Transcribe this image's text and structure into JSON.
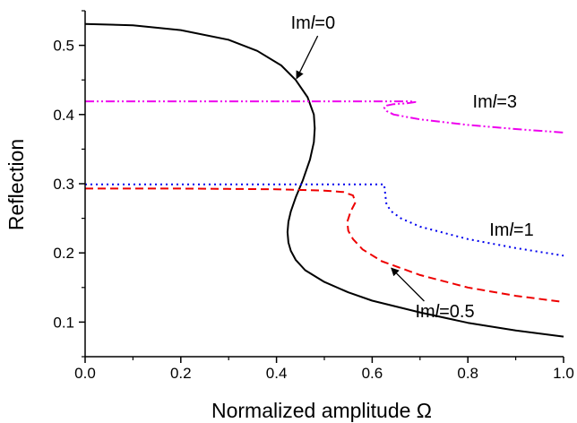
{
  "chart_data": {
    "type": "line",
    "title": "",
    "xlabel": "Normalized amplitude Ω",
    "ylabel": "Reflection",
    "xlim": [
      0,
      1
    ],
    "ylim": [
      0.05,
      0.55
    ],
    "xticks": [
      "0.0",
      "0.2",
      "0.4",
      "0.6",
      "0.8",
      "1.0"
    ],
    "xtick_values": [
      0,
      0.2,
      0.4,
      0.6,
      0.8,
      1.0
    ],
    "yticks": [
      "0.1",
      "0.2",
      "0.3",
      "0.4",
      "0.5"
    ],
    "ytick_values": [
      0.1,
      0.2,
      0.3,
      0.4,
      0.5
    ],
    "grid": false,
    "series": [
      {
        "color": "#000000",
        "dash": "solid",
        "x": [
          0.0,
          0.1,
          0.2,
          0.3,
          0.36,
          0.41,
          0.44,
          0.465,
          0.478,
          0.48,
          0.478,
          0.47,
          0.455,
          0.44,
          0.43,
          0.425,
          0.423,
          0.425,
          0.43,
          0.44,
          0.46,
          0.5,
          0.55,
          0.6,
          0.7,
          0.8,
          0.9,
          1.0
        ],
        "y": [
          0.531,
          0.529,
          0.522,
          0.508,
          0.492,
          0.471,
          0.45,
          0.425,
          0.4,
          0.38,
          0.36,
          0.335,
          0.305,
          0.28,
          0.26,
          0.245,
          0.23,
          0.215,
          0.203,
          0.19,
          0.175,
          0.158,
          0.143,
          0.131,
          0.114,
          0.099,
          0.088,
          0.079
        ]
      },
      {
        "color": "#ee00ee",
        "dash": "dash-dot-dot",
        "x": [
          0.0,
          0.2,
          0.4,
          0.55,
          0.62,
          0.65,
          0.68,
          0.69,
          0.67,
          0.645,
          0.63,
          0.625,
          0.63,
          0.645,
          0.7,
          0.8,
          0.9,
          1.0
        ],
        "y": [
          0.419,
          0.419,
          0.419,
          0.419,
          0.419,
          0.419,
          0.419,
          0.418,
          0.416,
          0.415,
          0.413,
          0.41,
          0.405,
          0.4,
          0.393,
          0.385,
          0.379,
          0.374
        ]
      },
      {
        "color": "#0000ee",
        "dash": "dotted",
        "x": [
          0.0,
          0.2,
          0.4,
          0.55,
          0.6,
          0.625,
          0.628,
          0.63,
          0.64,
          0.66,
          0.7,
          0.8,
          0.9,
          1.0
        ],
        "y": [
          0.299,
          0.299,
          0.299,
          0.299,
          0.299,
          0.299,
          0.28,
          0.27,
          0.26,
          0.25,
          0.238,
          0.22,
          0.207,
          0.196
        ]
      },
      {
        "color": "#ee0000",
        "dash": "dashed",
        "x": [
          0.0,
          0.2,
          0.4,
          0.5,
          0.54,
          0.56,
          0.565,
          0.555,
          0.548,
          0.55,
          0.56,
          0.58,
          0.62,
          0.7,
          0.8,
          0.9,
          1.0
        ],
        "y": [
          0.293,
          0.293,
          0.292,
          0.29,
          0.288,
          0.283,
          0.273,
          0.26,
          0.245,
          0.232,
          0.22,
          0.205,
          0.188,
          0.168,
          0.15,
          0.138,
          0.129
        ]
      }
    ],
    "annotations": [
      {
        "prefix": "Im",
        "italic": "l",
        "suffix": "=0",
        "x": 0.43,
        "y": 0.524,
        "arrow_to": [
          0.442,
          0.452
        ]
      },
      {
        "prefix": "Im",
        "italic": "l",
        "suffix": "=3",
        "x": 0.81,
        "y": 0.41
      },
      {
        "prefix": "Im",
        "italic": "l",
        "suffix": "=1",
        "x": 0.845,
        "y": 0.225
      },
      {
        "prefix": "Im",
        "italic": "l",
        "suffix": "=0.5",
        "x": 0.69,
        "y": 0.107,
        "arrow_to": [
          0.64,
          0.178
        ]
      }
    ]
  }
}
